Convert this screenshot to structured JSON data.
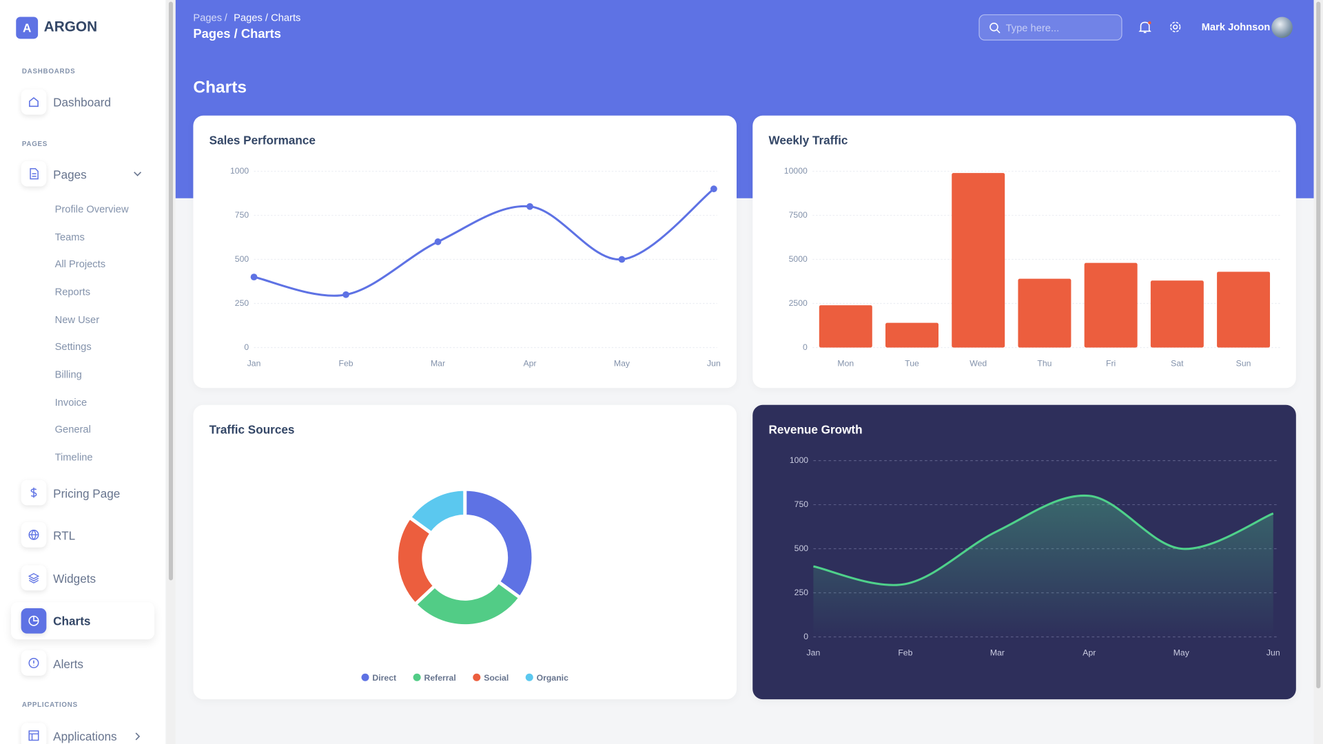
{
  "sidebar": {
    "logo": "A",
    "brand": "ARGON",
    "dashboards_heading": "DASHBOARDS",
    "dashboard": "Dashboard",
    "pages_heading": "PAGES",
    "pages": "Pages",
    "pages_children": [
      "Profile Overview",
      "Teams",
      "All Projects",
      "Reports",
      "New User",
      "Settings",
      "Billing",
      "Invoice",
      "General",
      "Timeline"
    ],
    "main_items": [
      "Pricing Page",
      "RTL",
      "Widgets",
      "Charts",
      "Alerts"
    ],
    "applications_heading": "APPLICATIONS",
    "applications": "Applications"
  },
  "header": {
    "breadcrumb": [
      "Pages",
      "Pages / Charts"
    ],
    "separator": "/",
    "page_title": "Pages / Charts",
    "heading": "Charts",
    "search_placeholder": "Type here...",
    "user": "Mark Johnson"
  },
  "chart_data": [
    {
      "type": "line",
      "title": "Sales Performance",
      "categories": [
        "Jan",
        "Feb",
        "Mar",
        "Apr",
        "May",
        "Jun"
      ],
      "values": [
        400,
        300,
        600,
        800,
        500,
        900
      ],
      "color": "#5e72e4",
      "ylim": [
        0,
        1000
      ],
      "yticks": [
        0,
        250,
        500,
        750,
        1000
      ],
      "grid": true
    },
    {
      "type": "bar",
      "title": "Weekly Traffic",
      "categories": [
        "Mon",
        "Tue",
        "Wed",
        "Thu",
        "Fri",
        "Sat",
        "Sun"
      ],
      "values": [
        2400,
        1400,
        9900,
        3900,
        4800,
        3800,
        4300
      ],
      "color": "#ec5e3e",
      "ylim": [
        0,
        10000
      ],
      "yticks": [
        0,
        2500,
        5000,
        7500,
        10000
      ],
      "grid": true
    },
    {
      "type": "doughnut",
      "title": "Traffic Sources",
      "categories": [
        "Direct",
        "Referral",
        "Social",
        "Organic"
      ],
      "values": [
        35,
        28,
        22,
        15
      ],
      "colors": [
        "#5e72e4",
        "#52cc86",
        "#ec5e3e",
        "#5bc8ef"
      ]
    },
    {
      "type": "area",
      "title": "Revenue Growth",
      "categories": [
        "Jan",
        "Feb",
        "Mar",
        "Apr",
        "May",
        "Jun"
      ],
      "values": [
        400,
        300,
        600,
        800,
        500,
        700
      ],
      "color": "#4fd18b",
      "ylim": [
        0,
        1000
      ],
      "yticks": [
        0,
        250,
        500,
        750,
        1000
      ],
      "grid": true
    }
  ]
}
